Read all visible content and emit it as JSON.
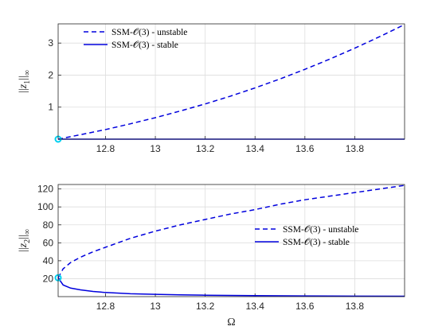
{
  "chart_data": [
    {
      "type": "line",
      "ylabel": "||z_1||_∞",
      "xlabel": "",
      "xlim": [
        12.61,
        14.0
      ],
      "ylim": [
        0,
        3.6
      ],
      "xticks": [
        12.8,
        13.0,
        13.2,
        13.4,
        13.6,
        13.8
      ],
      "xtick_labels": [
        "12.8",
        "13",
        "13.2",
        "13.4",
        "13.6",
        "13.8"
      ],
      "yticks": [
        1,
        2,
        3
      ],
      "ytick_labels": [
        "1",
        "2",
        "3"
      ],
      "grid": true,
      "legend_position": "top-left",
      "series": [
        {
          "name": "SSM-𝒪(3) - unstable",
          "style": "dashed",
          "color": "#0000dd",
          "x": [
            12.61,
            12.7,
            12.8,
            12.9,
            13.0,
            13.1,
            13.2,
            13.3,
            13.4,
            13.5,
            13.6,
            13.7,
            13.8,
            13.9,
            14.0
          ],
          "y": [
            0.0,
            0.14,
            0.3,
            0.48,
            0.67,
            0.88,
            1.1,
            1.34,
            1.6,
            1.88,
            2.18,
            2.5,
            2.84,
            3.2,
            3.58
          ]
        },
        {
          "name": "SSM-𝒪(3) - stable",
          "style": "solid",
          "color": "#0000dd",
          "x": [
            12.61,
            14.0
          ],
          "y": [
            0.0,
            0.0
          ]
        }
      ],
      "markers": [
        {
          "x": 12.61,
          "y": 0.0,
          "color": "#00d0f0"
        }
      ]
    },
    {
      "type": "line",
      "ylabel": "||z_2||_∞",
      "xlabel": "Ω",
      "xlim": [
        12.61,
        14.0
      ],
      "ylim": [
        0,
        125
      ],
      "xticks": [
        12.8,
        13.0,
        13.2,
        13.4,
        13.6,
        13.8
      ],
      "xtick_labels": [
        "12.8",
        "13",
        "13.2",
        "13.4",
        "13.6",
        "13.8"
      ],
      "yticks": [
        20,
        40,
        60,
        80,
        100,
        120
      ],
      "ytick_labels": [
        "20",
        "40",
        "60",
        "80",
        "100",
        "120"
      ],
      "grid": true,
      "legend_position": "right",
      "series": [
        {
          "name": "SSM-𝒪(3) - unstable",
          "style": "dashed",
          "color": "#0000dd",
          "x": [
            12.61,
            12.63,
            12.66,
            12.7,
            12.75,
            12.8,
            12.9,
            13.0,
            13.1,
            13.2,
            13.3,
            13.4,
            13.5,
            13.6,
            13.7,
            13.8,
            13.9,
            14.0
          ],
          "y": [
            21,
            31,
            38,
            44,
            50,
            55,
            65,
            73,
            80,
            86,
            92,
            97,
            103,
            108,
            112,
            116,
            120,
            124
          ]
        },
        {
          "name": "SSM-𝒪(3) - stable",
          "style": "solid",
          "color": "#0000dd",
          "x": [
            12.61,
            12.63,
            12.66,
            12.7,
            12.75,
            12.8,
            12.9,
            13.0,
            13.1,
            13.2,
            13.3,
            13.4,
            13.6,
            13.8,
            14.0
          ],
          "y": [
            21,
            13,
            9.5,
            7.5,
            5.8,
            4.6,
            3.2,
            2.5,
            2.0,
            1.6,
            1.3,
            1.1,
            0.8,
            0.6,
            0.5
          ]
        }
      ],
      "markers": [
        {
          "x": 12.61,
          "y": 21,
          "color": "#00d0f0"
        }
      ]
    }
  ]
}
